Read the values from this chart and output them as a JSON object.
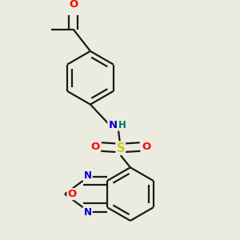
{
  "background_color": "#ebebdf",
  "bond_color": "#1a1a1a",
  "bond_width": 1.6,
  "atom_colors": {
    "O": "#ff0000",
    "N": "#0000cc",
    "S": "#cccc00",
    "H": "#007070",
    "C": "#1a1a1a"
  },
  "font_size": 8.5,
  "figsize": [
    3.0,
    3.0
  ],
  "dpi": 100
}
